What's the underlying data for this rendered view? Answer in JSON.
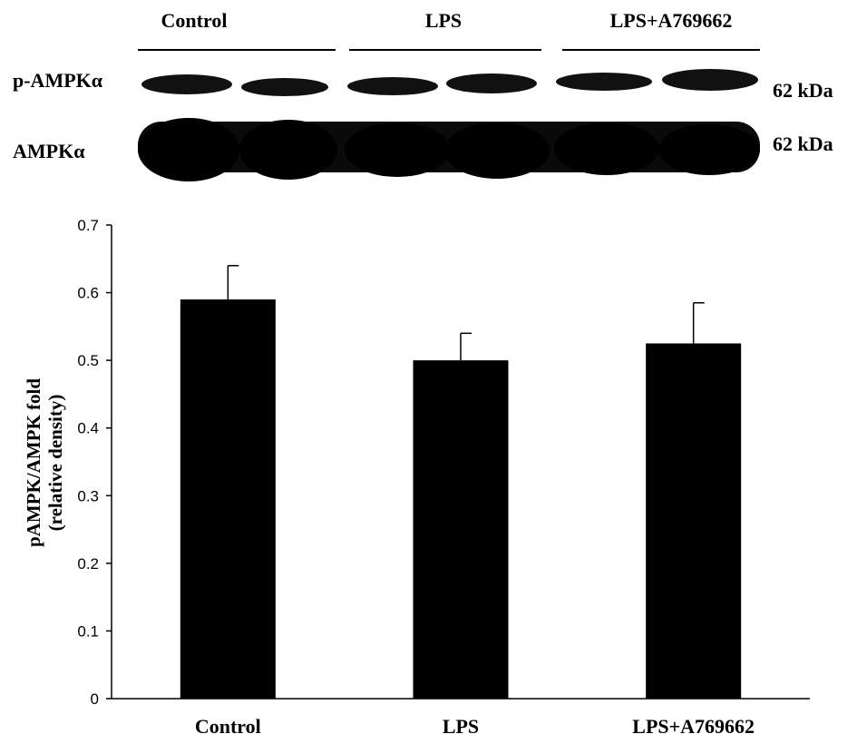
{
  "blot": {
    "groups": [
      "Control",
      "LPS",
      "LPS+A769662"
    ],
    "rows": [
      {
        "label": "p-AMPKα",
        "size": "62 kDa"
      },
      {
        "label": "AMPKα",
        "size": "62 kDa"
      }
    ]
  },
  "chart_data": {
    "type": "bar",
    "categories": [
      "Control",
      "LPS",
      "LPS+A769662"
    ],
    "values": [
      0.59,
      0.5,
      0.525
    ],
    "errors": [
      0.05,
      0.04,
      0.06
    ],
    "ylabel": [
      "pAMPK/AMPK fold",
      "(relative density)"
    ],
    "ylim": [
      0,
      0.7
    ],
    "yticks": [
      "0",
      "0.1",
      "0.2",
      "0.3",
      "0.4",
      "0.5",
      "0.6",
      "0.7"
    ],
    "grid": false,
    "bar_color": "#000000"
  }
}
